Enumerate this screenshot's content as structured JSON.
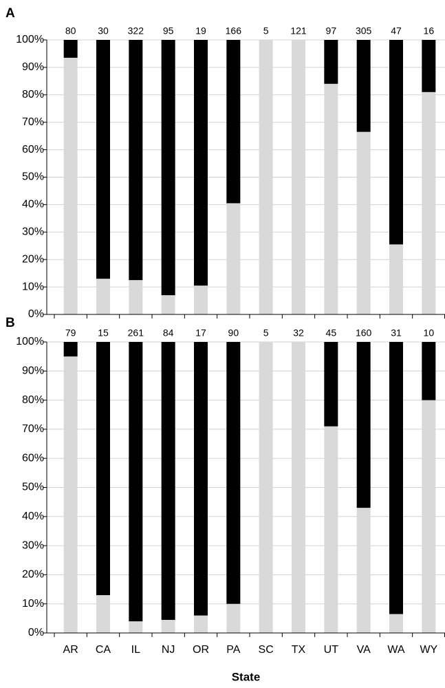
{
  "chart_data": [
    {
      "type": "stacked_bar",
      "panel_label": "A",
      "annotations": [
        80,
        30,
        322,
        95,
        19,
        166,
        5,
        121,
        97,
        305,
        47,
        16
      ],
      "series": [
        {
          "color": "#d9d9d9",
          "values": [
            93.5,
            13,
            12.5,
            7,
            10.5,
            40.5,
            100,
            100,
            84,
            66.5,
            25.5,
            81
          ]
        },
        {
          "color": "#000000",
          "values": [
            6.5,
            87,
            87.5,
            93,
            89.5,
            59.5,
            0,
            0,
            16,
            33.5,
            74.5,
            19
          ]
        }
      ],
      "ylim": [
        0,
        100
      ],
      "yticks": [
        {
          "value": 0,
          "label": "0%"
        },
        {
          "value": 10,
          "label": "10%"
        },
        {
          "value": 20,
          "label": "20%"
        },
        {
          "value": 30,
          "label": "30%"
        },
        {
          "value": 40,
          "label": "40%"
        },
        {
          "value": 50,
          "label": "50%"
        },
        {
          "value": 60,
          "label": "60%"
        },
        {
          "value": 70,
          "label": "70%"
        },
        {
          "value": 80,
          "label": "80%"
        },
        {
          "value": 90,
          "label": "90%"
        },
        {
          "value": 100,
          "label": "100%"
        }
      ],
      "grid": true
    },
    {
      "type": "stacked_bar",
      "panel_label": "B",
      "x_label": "State",
      "categories": [
        "AR",
        "CA",
        "IL",
        "NJ",
        "OR",
        "PA",
        "SC",
        "TX",
        "UT",
        "VA",
        "WA",
        "WY"
      ],
      "annotations": [
        79,
        15,
        261,
        84,
        17,
        90,
        5,
        32,
        45,
        160,
        31,
        10
      ],
      "series": [
        {
          "color": "#d9d9d9",
          "values": [
            95,
            13,
            4,
            4.5,
            6,
            10,
            100,
            100,
            71,
            43,
            6.5,
            80
          ]
        },
        {
          "color": "#000000",
          "values": [
            5,
            87,
            96,
            95.5,
            94,
            90,
            0,
            0,
            29,
            57,
            93.5,
            20
          ]
        }
      ],
      "ylim": [
        0,
        100
      ],
      "yticks": [
        {
          "value": 0,
          "label": "0%"
        },
        {
          "value": 10,
          "label": "10%"
        },
        {
          "value": 20,
          "label": "20%"
        },
        {
          "value": 30,
          "label": "30%"
        },
        {
          "value": 40,
          "label": "40%"
        },
        {
          "value": 50,
          "label": "50%"
        },
        {
          "value": 60,
          "label": "60%"
        },
        {
          "value": 70,
          "label": "70%"
        },
        {
          "value": 80,
          "label": "80%"
        },
        {
          "value": 90,
          "label": "90%"
        },
        {
          "value": 100,
          "label": "100%"
        }
      ],
      "grid": true
    }
  ]
}
